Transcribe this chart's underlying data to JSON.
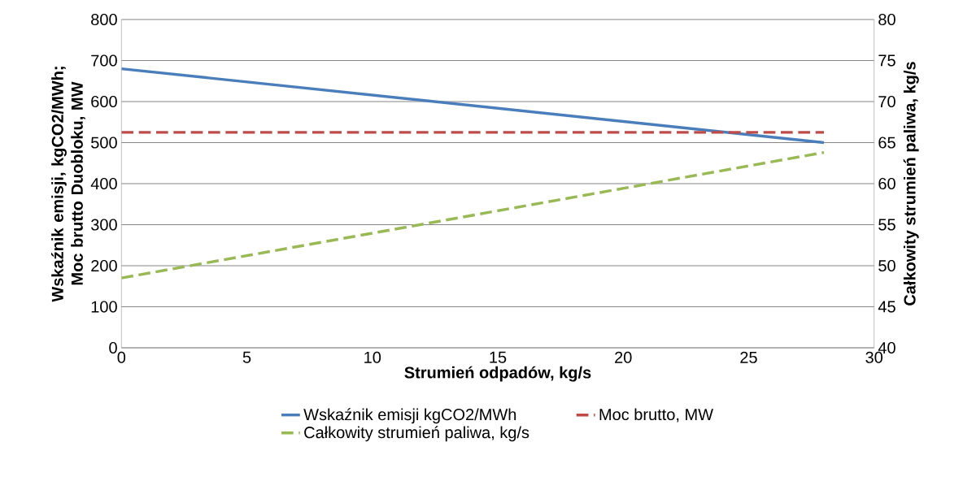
{
  "chart_data": {
    "type": "line",
    "xlabel": "Strumień odpadów, kg/s",
    "ylabel": "Wskaźnik emisji, kgCO2/MWh; Moc brutto Duobloku, MW",
    "y2label": "Całkowity strumień paliwa, kg/s",
    "x": [
      0,
      28
    ],
    "series": [
      {
        "name": "Wskaźnik emisji kgCO2/MWh",
        "color": "#4a7ebb",
        "values": [
          680,
          500
        ],
        "line_style": "solid"
      },
      {
        "name": "Moc brutto, MW",
        "color": "#be4b48",
        "values": [
          525,
          525
        ],
        "line_style": "dashed"
      },
      {
        "name": "Całkowity strumień paliwa, kg/s",
        "color": "#98b954",
        "values": [
          48.5,
          63.8
        ],
        "line_style": "dashed",
        "axis": "y2"
      }
    ],
    "xlim": [
      0,
      30
    ],
    "xticks": [
      0,
      5,
      10,
      15,
      20,
      25,
      30
    ],
    "ylim": [
      0,
      800
    ],
    "yticks": [
      0,
      100,
      200,
      300,
      400,
      500,
      600,
      700,
      800
    ],
    "y2lim": [
      40,
      80
    ],
    "y2ticks": [
      40,
      45,
      50,
      55,
      60,
      65,
      70,
      75,
      80
    ],
    "grid": "y",
    "legend": "bottom"
  }
}
